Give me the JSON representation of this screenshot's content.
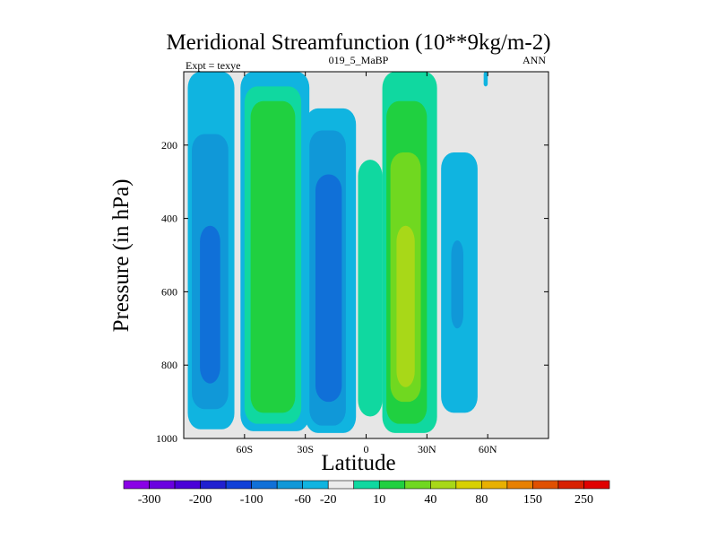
{
  "chart_data": {
    "type": "heatmap",
    "title": "Meridional Streamfunction (10**9kg/m-2)",
    "subtitle": "019_5_MaBP",
    "left_annotation": "Expt = texye",
    "right_annotation": "ANN",
    "xlabel": "Latitude",
    "ylabel": "Pressure (in hPa)",
    "x_range": [
      -90,
      90
    ],
    "y_range": [
      0,
      1000
    ],
    "y_inverted": true,
    "x_ticks": [
      {
        "value": -60,
        "label": "60S"
      },
      {
        "value": -30,
        "label": "30S"
      },
      {
        "value": 0,
        "label": "0"
      },
      {
        "value": 30,
        "label": "30N"
      },
      {
        "value": 60,
        "label": "60N"
      }
    ],
    "y_ticks": [
      {
        "value": 200,
        "label": "200"
      },
      {
        "value": 400,
        "label": "400"
      },
      {
        "value": 600,
        "label": "600"
      },
      {
        "value": 800,
        "label": "800"
      },
      {
        "value": 1000,
        "label": "1000"
      }
    ],
    "background_color": "#e6e6e6",
    "colorbar": {
      "colors": [
        "#8a00e6",
        "#6a00e0",
        "#4a00d8",
        "#2020d0",
        "#1040d8",
        "#1070d8",
        "#1098d8",
        "#10b4e0",
        "#ececec",
        "#10d8a0",
        "#20d040",
        "#70d820",
        "#a8d818",
        "#d8d000",
        "#e8b000",
        "#e88000",
        "#e05000",
        "#d82000",
        "#e00000"
      ],
      "labels": [
        "-300",
        "-200",
        "-100",
        "-60",
        "-20",
        "10",
        "40",
        "80",
        "150",
        "250"
      ]
    },
    "level_colors": {
      "-20": "#10b4e0",
      "-60": "#1098d8",
      "-100": "#1070d8",
      "10": "#10d8a0",
      "40": "#20d040",
      "80": "#70d820",
      "90": "#a8d818"
    },
    "contour_regions": [
      {
        "level": "-20",
        "lat_range": [
          -88,
          -65
        ],
        "p_range": [
          0,
          975
        ]
      },
      {
        "level": "-60",
        "lat_range": [
          -86,
          -68
        ],
        "p_range": [
          170,
          920
        ]
      },
      {
        "level": "-100",
        "lat_range": [
          -82,
          -72
        ],
        "p_range": [
          420,
          850
        ]
      },
      {
        "level": "-20",
        "lat_range": [
          -62,
          -28
        ],
        "p_range": [
          0,
          980
        ]
      },
      {
        "level": "10",
        "lat_range": [
          -60,
          -32
        ],
        "p_range": [
          40,
          960
        ]
      },
      {
        "level": "40",
        "lat_range": [
          -57,
          -35
        ],
        "p_range": [
          80,
          930
        ]
      },
      {
        "level": "-20",
        "lat_range": [
          -30,
          -5
        ],
        "p_range": [
          100,
          985
        ]
      },
      {
        "level": "-60",
        "lat_range": [
          -28,
          -10
        ],
        "p_range": [
          160,
          965
        ]
      },
      {
        "level": "-100",
        "lat_range": [
          -25,
          -12
        ],
        "p_range": [
          280,
          900
        ]
      },
      {
        "level": "10",
        "lat_range": [
          -4,
          8
        ],
        "p_range": [
          240,
          940
        ]
      },
      {
        "level": "10",
        "lat_range": [
          8,
          35
        ],
        "p_range": [
          0,
          985
        ]
      },
      {
        "level": "40",
        "lat_range": [
          10,
          30
        ],
        "p_range": [
          80,
          960
        ]
      },
      {
        "level": "80",
        "lat_range": [
          12,
          27
        ],
        "p_range": [
          220,
          900
        ]
      },
      {
        "level": "90",
        "lat_range": [
          15,
          24
        ],
        "p_range": [
          420,
          860
        ]
      },
      {
        "level": "-20",
        "lat_range": [
          37,
          55
        ],
        "p_range": [
          220,
          930
        ]
      },
      {
        "level": "-60",
        "lat_range": [
          42,
          48
        ],
        "p_range": [
          460,
          700
        ]
      },
      {
        "level": "-20",
        "lat_range": [
          58,
          60
        ],
        "p_range": [
          0,
          40
        ]
      }
    ]
  }
}
